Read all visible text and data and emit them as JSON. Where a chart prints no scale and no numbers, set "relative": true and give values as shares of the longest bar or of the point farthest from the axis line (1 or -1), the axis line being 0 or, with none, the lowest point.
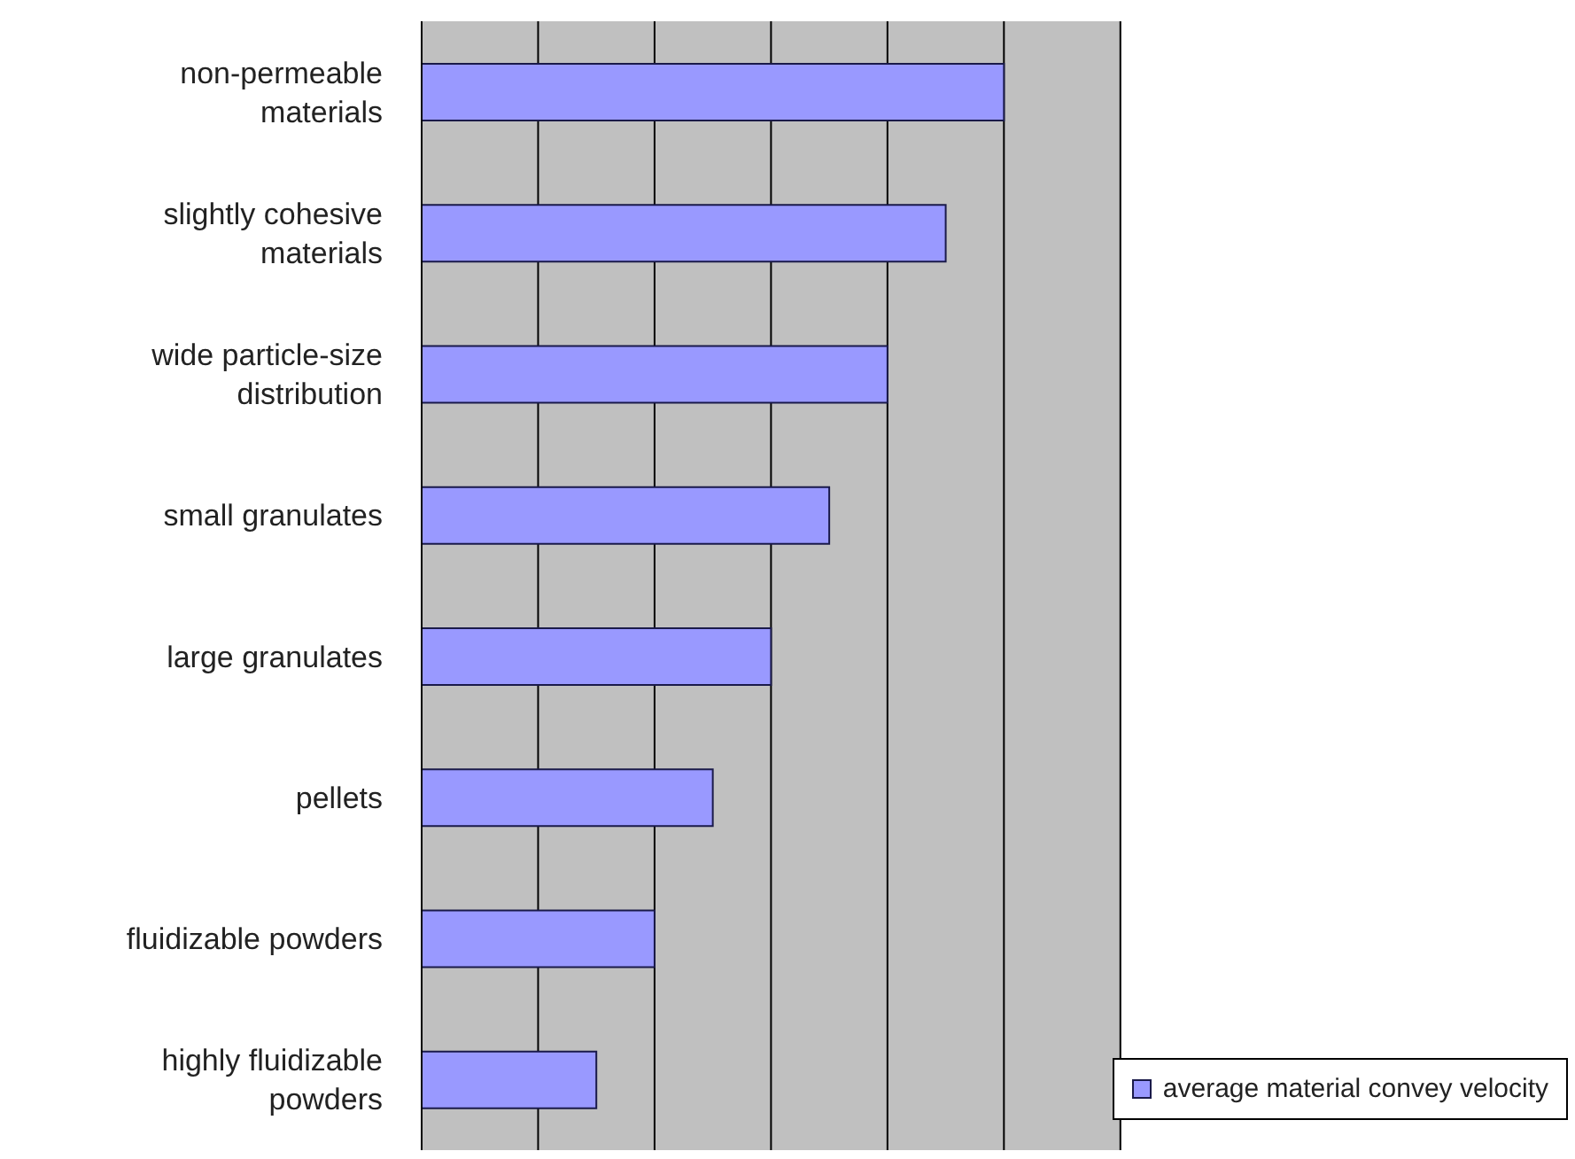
{
  "chart_data": {
    "type": "bar",
    "orientation": "horizontal",
    "relative": true,
    "categories": [
      "non-permeable materials",
      "slightly cohesive materials",
      "wide particle-size distribution",
      "small granulates",
      "large granulates",
      "pellets",
      "fluidizable powders",
      "highly fluidizable powders"
    ],
    "series": [
      {
        "name": "average material convey velocity",
        "color": "#9999ff",
        "values": [
          1,
          0.9,
          0.8,
          0.7,
          0.6,
          0.5,
          0.4,
          0.3
        ]
      }
    ],
    "grid": "x",
    "legend": "bottom right"
  }
}
